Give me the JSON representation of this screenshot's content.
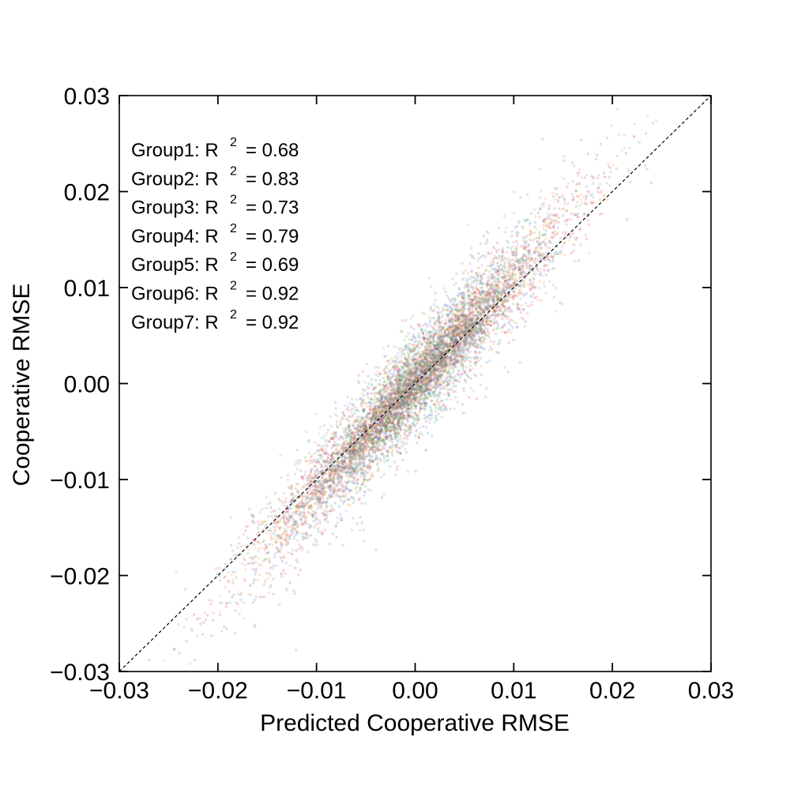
{
  "chart_data": {
    "type": "scatter",
    "title": "",
    "xlabel": "Predicted Cooperative RMSE",
    "ylabel": "Cooperative RMSE",
    "xlim": [
      -0.03,
      0.03
    ],
    "ylim": [
      -0.03,
      0.03
    ],
    "xticks": [
      -0.03,
      -0.02,
      -0.01,
      0.0,
      0.01,
      0.02,
      0.03
    ],
    "yticks": [
      -0.03,
      -0.02,
      -0.01,
      0.0,
      0.01,
      0.02,
      0.03
    ],
    "xtick_labels": [
      "−0.03",
      "−0.02",
      "−0.01",
      "0.00",
      "0.01",
      "0.02",
      "0.03"
    ],
    "ytick_labels": [
      "−0.03",
      "−0.02",
      "−0.01",
      "0.00",
      "0.01",
      "0.02",
      "0.03"
    ],
    "grid": false,
    "reference_line": {
      "style": "dashed",
      "color": "#000000",
      "from": [
        -0.03,
        -0.03
      ],
      "to": [
        0.03,
        0.03
      ]
    },
    "annotation_position": "top-left",
    "series": [
      {
        "label": "Group1",
        "r2": "0.68",
        "color": "#1f77b4",
        "slope": 1.15,
        "offset": -0.0004,
        "sx": 0.0078,
        "noise": 0.0032,
        "points": [
          [
            -0.0152,
            -0.0168
          ],
          [
            -0.0121,
            -0.0145
          ],
          [
            -0.0098,
            -0.0119
          ],
          [
            -0.0074,
            -0.0081
          ],
          [
            -0.0053,
            -0.0069
          ],
          [
            -0.0031,
            -0.0042
          ],
          [
            -0.0012,
            -0.0018
          ],
          [
            0.0008,
            0.0012
          ],
          [
            0.0027,
            0.0031
          ],
          [
            0.0049,
            0.0062
          ],
          [
            0.0071,
            0.0085
          ],
          [
            0.0102,
            0.0121
          ]
        ]
      },
      {
        "label": "Group2",
        "r2": "0.83",
        "color": "#ff7f0e",
        "slope": 1.12,
        "offset": 0.0002,
        "sx": 0.0085,
        "noise": 0.0022,
        "points": [
          [
            -0.0198,
            -0.0221
          ],
          [
            -0.0143,
            -0.0162
          ],
          [
            -0.0102,
            -0.0115
          ],
          [
            -0.0061,
            -0.0068
          ],
          [
            -0.0023,
            -0.0021
          ],
          [
            0.0014,
            0.0019
          ],
          [
            0.0045,
            0.0052
          ],
          [
            0.0081,
            0.0094
          ],
          [
            0.0123,
            0.0141
          ],
          [
            0.0171,
            0.0195
          ],
          [
            0.0201,
            0.0228
          ]
        ]
      },
      {
        "label": "Group3",
        "r2": "0.73",
        "color": "#2ca02c",
        "slope": 1.08,
        "offset": 0.0001,
        "sx": 0.0055,
        "noise": 0.0024,
        "points": [
          [
            -0.0112,
            -0.0125
          ],
          [
            -0.0081,
            -0.0089
          ],
          [
            -0.0055,
            -0.0058
          ],
          [
            -0.0032,
            -0.0036
          ],
          [
            -0.0011,
            -0.0009
          ],
          [
            0.0012,
            0.0015
          ],
          [
            0.0035,
            0.0041
          ],
          [
            0.0058,
            0.0063
          ],
          [
            0.0084,
            0.0091
          ]
        ]
      },
      {
        "label": "Group4",
        "r2": "0.79",
        "color": "#d62728",
        "slope": 1.1,
        "offset": 0.0,
        "sx": 0.0092,
        "noise": 0.0026,
        "points": [
          [
            -0.0221,
            -0.0245
          ],
          [
            -0.0165,
            -0.0183
          ],
          [
            -0.0118,
            -0.0129
          ],
          [
            -0.0071,
            -0.0079
          ],
          [
            -0.0026,
            -0.0031
          ],
          [
            0.0018,
            0.0022
          ],
          [
            0.0062,
            0.0071
          ],
          [
            0.0105,
            0.0118
          ],
          [
            0.0152,
            0.0169
          ],
          [
            0.0193,
            0.0215
          ]
        ]
      },
      {
        "label": "Group5",
        "r2": "0.69",
        "color": "#9467bd",
        "slope": 1.1,
        "offset": 0.0003,
        "sx": 0.0075,
        "noise": 0.0031,
        "points": [
          [
            -0.0165,
            -0.0181
          ],
          [
            -0.0113,
            -0.0128
          ],
          [
            -0.0072,
            -0.0076
          ],
          [
            -0.0034,
            -0.0039
          ],
          [
            0.0004,
            0.0008
          ],
          [
            0.0041,
            0.0046
          ],
          [
            0.0079,
            0.0091
          ],
          [
            0.0121,
            0.0136
          ],
          [
            0.0158,
            0.0171
          ]
        ]
      },
      {
        "label": "Group6",
        "r2": "0.92",
        "color": "#8c564b",
        "slope": 1.1,
        "offset": 0.0,
        "sx": 0.0062,
        "noise": 0.0014,
        "points": [
          [
            -0.0132,
            -0.0146
          ],
          [
            -0.0091,
            -0.0101
          ],
          [
            -0.0052,
            -0.0057
          ],
          [
            -0.0018,
            -0.0019
          ],
          [
            0.0016,
            0.0017
          ],
          [
            0.0053,
            0.0058
          ],
          [
            0.0092,
            0.0101
          ],
          [
            0.0128,
            0.0141
          ]
        ]
      },
      {
        "label": "Group7",
        "r2": "0.92",
        "color": "#7f7f7f",
        "slope": 1.1,
        "offset": 0.0,
        "sx": 0.0058,
        "noise": 0.0014,
        "points": [
          [
            -0.0121,
            -0.0134
          ],
          [
            -0.0082,
            -0.0091
          ],
          [
            -0.0045,
            -0.0049
          ],
          [
            -0.0012,
            -0.0013
          ],
          [
            0.0021,
            0.0023
          ],
          [
            0.0058,
            0.0064
          ],
          [
            0.0095,
            0.0104
          ],
          [
            0.0124,
            0.0137
          ]
        ]
      }
    ],
    "points_per_series": 1100,
    "marker_radius": 1.1,
    "marker_opacity": 0.28
  }
}
